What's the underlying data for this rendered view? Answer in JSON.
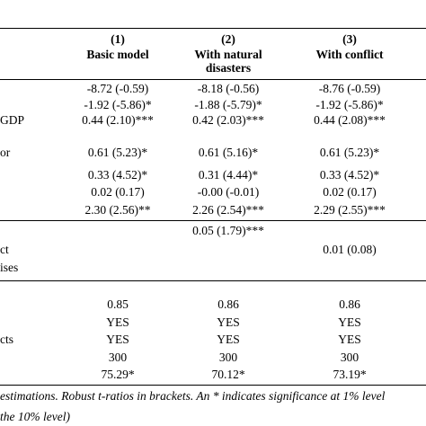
{
  "columns": [
    {
      "number": "(1)",
      "title": [
        "Basic model"
      ]
    },
    {
      "number": "(2)",
      "title": [
        "With natural",
        "disasters"
      ]
    },
    {
      "number": "(3)",
      "title": [
        "With conflict"
      ]
    }
  ],
  "row_labels": {
    "gdp": "GDP",
    "or": "or",
    "ct": "ct",
    "ises": "ises",
    "cts": "cts"
  },
  "rows": [
    [
      "-8.72 (-0.59)",
      "-8.18 (-0.56)",
      "-8.76 (-0.59)"
    ],
    [
      "-1.92 (-5.86)*",
      "-1.88 (-5.79)*",
      "-1.92 (-5.86)*"
    ],
    [
      "0.44 (2.10)***",
      "0.42 (2.03)***",
      "0.44 (2.08)***"
    ],
    [
      "0.61 (5.23)*",
      "0.61 (5.16)*",
      "0.61 (5.23)*"
    ],
    [
      "0.33 (4.52)*",
      "0.31 (4.44)*",
      "0.33 (4.52)*"
    ],
    [
      "0.02 (0.17)",
      "-0.00 (-0.01)",
      "0.02 (0.17)"
    ],
    [
      "2.30 (2.56)**",
      "2.26 (2.54)***",
      "2.29 (2.55)***"
    ]
  ],
  "disaster_row": [
    "",
    "0.05 (1.79)***",
    ""
  ],
  "conflict_row": [
    "",
    "",
    "0.01 (0.08)"
  ],
  "stats_rows": [
    [
      "0.85",
      "0.86",
      "0.86"
    ],
    [
      "YES",
      "YES",
      "YES"
    ],
    [
      "YES",
      "YES",
      "YES"
    ],
    [
      "300",
      "300",
      "300"
    ],
    [
      "75.29*",
      "70.12*",
      "73.19*"
    ]
  ],
  "notes": [
    "estimations. Robust t-ratios in brackets. An * indicates significance at 1% level",
    "the 10% level)"
  ]
}
